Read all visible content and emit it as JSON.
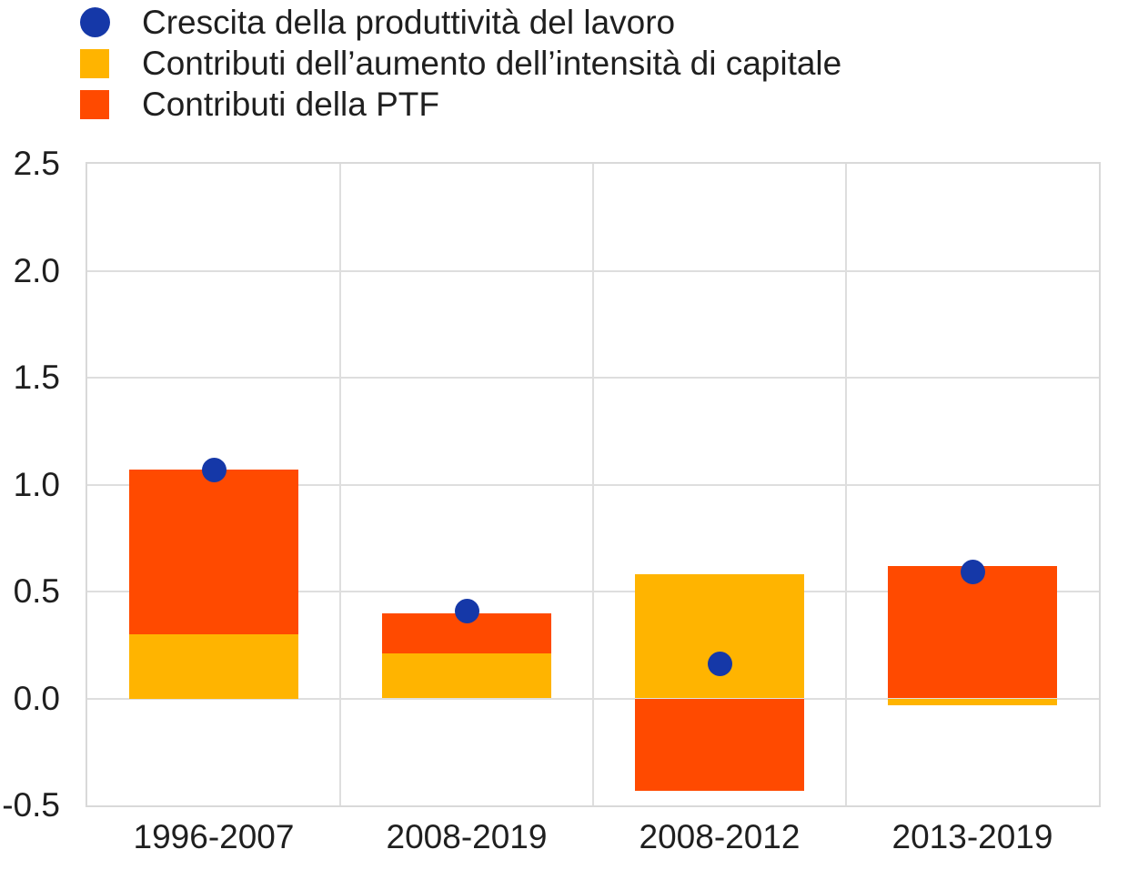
{
  "chart_data": {
    "type": "bar",
    "subtype": "stacked-bar-with-scatter-totals",
    "title": "",
    "xlabel": "",
    "ylabel": "",
    "categories": [
      "1996-2007",
      "2008-2019",
      "2008-2012",
      "2013-2019"
    ],
    "series": [
      {
        "name": "Crescita della produttività del lavoro",
        "type": "scatter",
        "marker": "circle",
        "color": "#1538a8",
        "values": [
          1.07,
          0.41,
          0.16,
          0.59
        ]
      },
      {
        "name": "Contributi dell’aumento dell’intensità di capitale",
        "type": "bar",
        "color": "#ffb400",
        "values": [
          0.3,
          0.21,
          0.58,
          -0.03
        ]
      },
      {
        "name": "Contributi della PTF",
        "type": "bar",
        "color": "#ff4a00",
        "values": [
          0.77,
          0.19,
          -0.43,
          0.62
        ]
      }
    ],
    "ylim": [
      -0.5,
      2.5
    ],
    "yticks": [
      "2.5",
      "2.0",
      "1.5",
      "1.0",
      "0.5",
      "0.0",
      "-0.5"
    ],
    "grid": true,
    "legend_position": "top-left",
    "colors": {
      "grid": "#dedede",
      "plot_border": "#d9d9d9",
      "text": "#1f1f1f"
    }
  }
}
